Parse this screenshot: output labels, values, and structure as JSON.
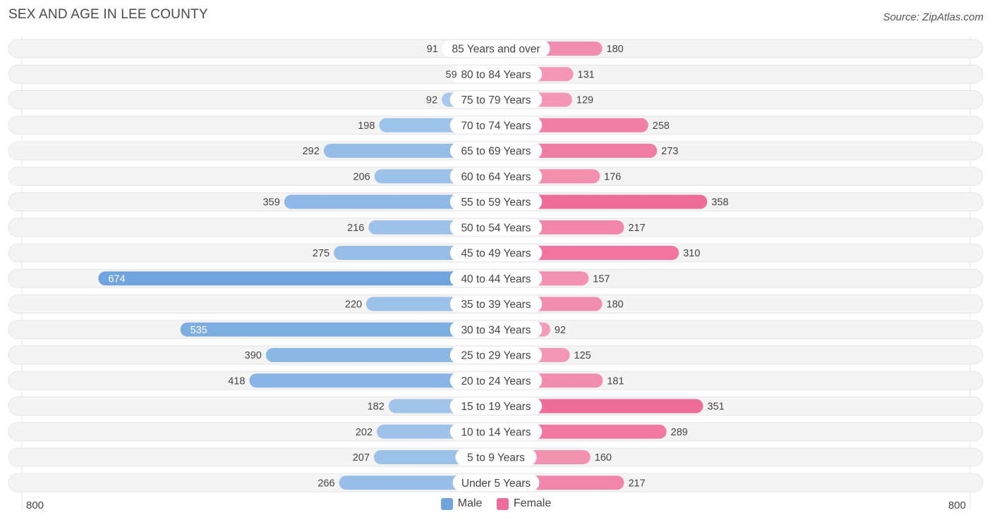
{
  "header": {
    "title": "SEX AND AGE IN LEE COUNTY",
    "source": "Source: ZipAtlas.com"
  },
  "colors": {
    "male": "#6ea5df",
    "male_light": "#b2cfee",
    "female": "#f06c98",
    "female_light": "#f6aec6",
    "row_bg": "#efefef"
  },
  "chart_data": {
    "type": "bar",
    "orientation": "horizontal-diverging",
    "categories": [
      "85 Years and over",
      "80 to 84 Years",
      "75 to 79 Years",
      "70 to 74 Years",
      "65 to 69 Years",
      "60 to 64 Years",
      "55 to 59 Years",
      "50 to 54 Years",
      "45 to 49 Years",
      "40 to 44 Years",
      "35 to 39 Years",
      "30 to 34 Years",
      "25 to 29 Years",
      "20 to 24 Years",
      "15 to 19 Years",
      "10 to 14 Years",
      "5 to 9 Years",
      "Under 5 Years"
    ],
    "series": [
      {
        "name": "Male",
        "values": [
          91,
          59,
          92,
          198,
          292,
          206,
          359,
          216,
          275,
          674,
          220,
          535,
          390,
          418,
          182,
          202,
          207,
          266
        ]
      },
      {
        "name": "Female",
        "values": [
          180,
          131,
          129,
          258,
          273,
          176,
          358,
          217,
          310,
          157,
          180,
          92,
          125,
          181,
          351,
          289,
          160,
          217
        ]
      }
    ],
    "xlim": [
      -800,
      800
    ],
    "axis_labels": {
      "left": "800",
      "right": "800"
    },
    "legend": {
      "position": "bottom-center",
      "entries": [
        "Male",
        "Female"
      ]
    },
    "grid": false
  }
}
